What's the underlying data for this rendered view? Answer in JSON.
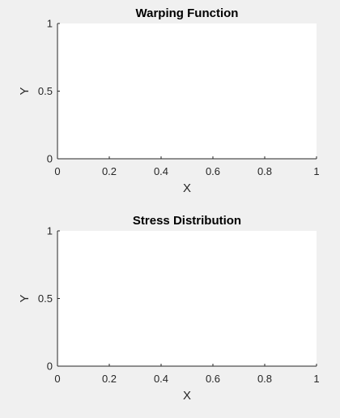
{
  "chart_data": [
    {
      "type": "line",
      "title": "Warping Function",
      "xlabel": "X",
      "ylabel": "Y",
      "xlim": [
        0,
        1
      ],
      "ylim": [
        0,
        1
      ],
      "xticks": [
        "0",
        "0.2",
        "0.4",
        "0.6",
        "0.8",
        "1"
      ],
      "yticks": [
        "0",
        "0.5",
        "1"
      ],
      "grid": false,
      "series": []
    },
    {
      "type": "line",
      "title": "Stress Distribution",
      "xlabel": "X",
      "ylabel": "Y",
      "xlim": [
        0,
        1
      ],
      "ylim": [
        0,
        1
      ],
      "xticks": [
        "0",
        "0.2",
        "0.4",
        "0.6",
        "0.8",
        "1"
      ],
      "yticks": [
        "0",
        "0.5",
        "1"
      ],
      "grid": false,
      "series": []
    }
  ],
  "colors": {
    "figure_background": "#f0f0f0",
    "axes_background": "#ffffff",
    "axis_line": "#262626"
  }
}
